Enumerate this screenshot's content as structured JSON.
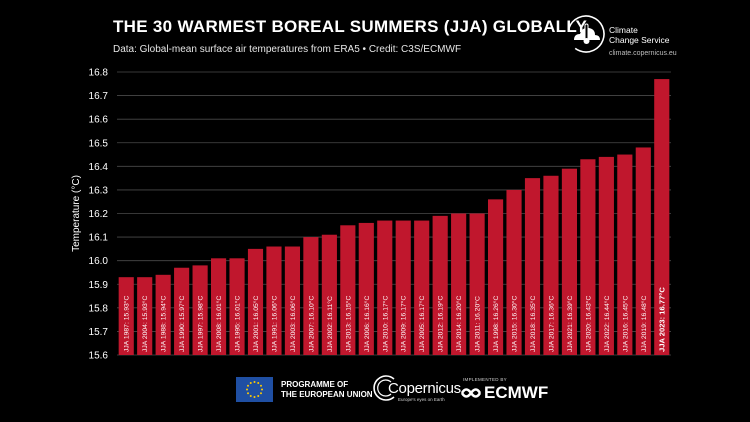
{
  "header": {
    "title": "THE 30 WARMEST BOREAL SUMMERS (JJA) GLOBALLY",
    "subtitle": "Data: Global-mean surface air temperatures from ERA5 • Credit: C3S/ECMWF"
  },
  "c3s": {
    "name_line1": "Climate",
    "name_line2": "Change Service",
    "url": "climate.copernicus.eu"
  },
  "footer": {
    "eu_line1": "PROGRAMME OF",
    "eu_line2": "THE EUROPEAN UNION",
    "copernicus_name": "Copernicus",
    "copernicus_tagline": "Europe's eyes on Earth",
    "implemented_by": "IMPLEMENTED BY",
    "ecmwf_name": "ECMWF"
  },
  "colors": {
    "bar": "#c0172d",
    "grid": "#4a4a4a",
    "background": "#000000"
  },
  "chart_data": {
    "type": "bar",
    "ylabel": "Temperature (°C)",
    "ylim": [
      15.6,
      16.8
    ],
    "yticks": [
      "15.6",
      "15.7",
      "15.8",
      "15.9",
      "16.0",
      "16.1",
      "16.2",
      "16.3",
      "16.4",
      "16.5",
      "16.6",
      "16.7",
      "16.8"
    ],
    "grid": true,
    "highlight_last": true,
    "labels": [
      "JJA 1987: 15.93°C",
      "JJA 2004: 15.93°C",
      "JJA 1988: 15.94°C",
      "JJA 1990: 15.97°C",
      "JJA 1997: 15.98°C",
      "JJA 2008: 16.01°C",
      "JJA 1995: 16.01°C",
      "JJA 2001: 16.05°C",
      "JJA 1991: 16.06°C",
      "JJA 2003: 16.06°C",
      "JJA 2007: 16.10°C",
      "JJA 2002: 16.11°C",
      "JJA 2013: 16.15°C",
      "JJA 2006: 16.16°C",
      "JJA 2010: 16.17°C",
      "JJA 2009: 16.17°C",
      "JJA 2005: 16.17°C",
      "JJA 2012: 16.19°C",
      "JJA 2014: 16.20°C",
      "JJA 2011: 16.20°C",
      "JJA 1998: 16.26°C",
      "JJA 2015: 16.30°C",
      "JJA 2018: 16.35°C",
      "JJA 2017: 16.36°C",
      "JJA 2021: 16.39°C",
      "JJA 2020: 16.43°C",
      "JJA 2022: 16.44°C",
      "JJA 2016: 16.45°C",
      "JJA 2019: 16.48°C",
      "JJA 2023: 16.77°C"
    ],
    "values": [
      15.93,
      15.93,
      15.94,
      15.97,
      15.98,
      16.01,
      16.01,
      16.05,
      16.06,
      16.06,
      16.1,
      16.11,
      16.15,
      16.16,
      16.17,
      16.17,
      16.17,
      16.19,
      16.2,
      16.2,
      16.26,
      16.3,
      16.35,
      16.36,
      16.39,
      16.43,
      16.44,
      16.45,
      16.48,
      16.77
    ]
  }
}
